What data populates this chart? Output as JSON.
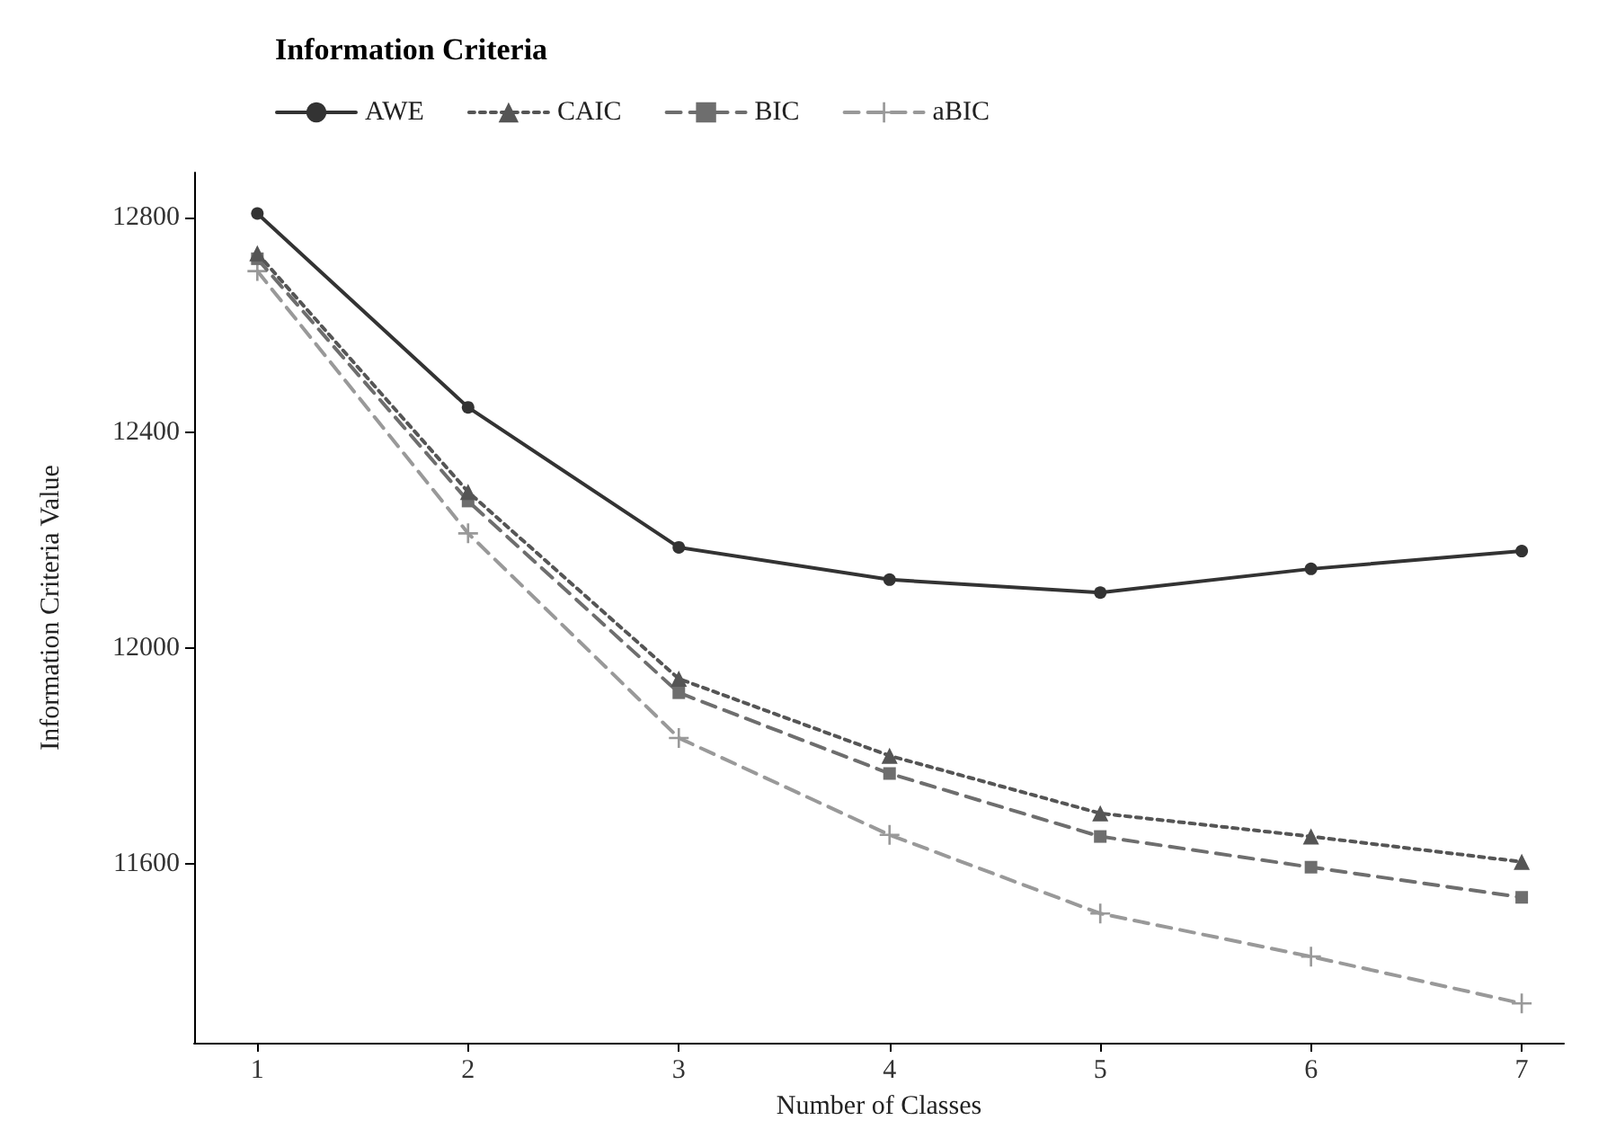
{
  "chart_data": {
    "type": "line",
    "title": "Information Criteria",
    "xlabel": "Number of Classes",
    "ylabel": "Information Criteria Value",
    "x": [
      1,
      2,
      3,
      4,
      5,
      6,
      7
    ],
    "xlim": [
      0.7,
      7.2
    ],
    "xticks": [
      1,
      2,
      3,
      4,
      5,
      6,
      7
    ],
    "ylim": [
      11267,
      12883
    ],
    "yticks": [
      11600,
      12000,
      12400,
      12800
    ],
    "grid": false,
    "legend": "top left",
    "series": [
      {
        "name": "AWE",
        "color": "#333333",
        "marker": "circle",
        "line_style": "solid",
        "values": [
          12807,
          12447,
          12187,
          12127,
          12103,
          12147,
          12180
        ]
      },
      {
        "name": "CAIC",
        "color": "#555555",
        "marker": "triangle",
        "line_style": "dotted",
        "values": [
          12733,
          12290,
          11943,
          11800,
          11693,
          11650,
          11603
        ]
      },
      {
        "name": "BIC",
        "color": "#6e6e6e",
        "marker": "square",
        "line_style": "dashed",
        "values": [
          12723,
          12273,
          11917,
          11767,
          11650,
          11593,
          11537
        ]
      },
      {
        "name": "aBIC",
        "color": "#999999",
        "marker": "cross",
        "line_style": "dashed",
        "values": [
          12700,
          12213,
          11833,
          11653,
          11507,
          11427,
          11340
        ]
      }
    ]
  }
}
